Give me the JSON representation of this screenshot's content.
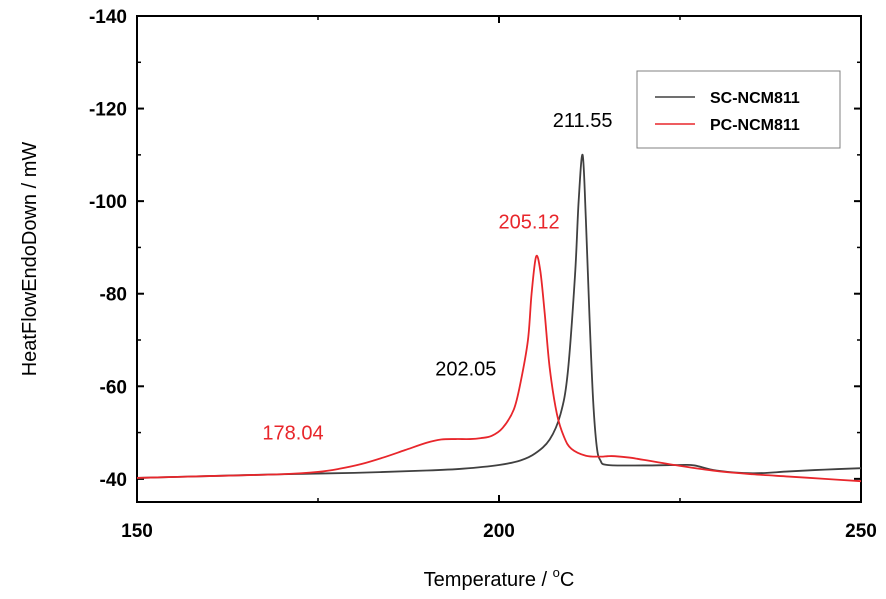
{
  "chart_data": {
    "type": "line",
    "title": "",
    "xlabel": "Temperature / °C",
    "xlabel_main": "Temperature / ",
    "xlabel_sup": "o",
    "xlabel_unit": "C",
    "ylabel": "HeatFlowEndoDown / mW",
    "xlim": [
      150,
      250
    ],
    "ylim": [
      -35,
      -140
    ],
    "xticks": [
      150,
      200,
      250
    ],
    "xtick_labels": [
      "150",
      "200",
      "250"
    ],
    "yticks": [
      -40,
      -60,
      -80,
      -100,
      -120,
      -140
    ],
    "ytick_labels": [
      "-40",
      "-60",
      "-80",
      "-100",
      "-120",
      "-140"
    ],
    "legend_position": "top-right",
    "series": [
      {
        "name": "SC-NCM811",
        "color": "#404040",
        "x": [
          150,
          160,
          170,
          180,
          190,
          195,
          200,
          203,
          205,
          207,
          208.5,
          209.5,
          210.5,
          211,
          211.55,
          212,
          212.5,
          213,
          213.5,
          214,
          215,
          220,
          225,
          227,
          230,
          235,
          240,
          245,
          250
        ],
        "y": [
          -40.2,
          -40.6,
          -41.0,
          -41.3,
          -41.8,
          -42.2,
          -43.0,
          -44.0,
          -45.5,
          -48.5,
          -54,
          -63,
          -84,
          -100,
          -110,
          -96,
          -75,
          -57,
          -47,
          -44,
          -43,
          -42.9,
          -43.0,
          -42.9,
          -41.8,
          -41.2,
          -41.6,
          -42.0,
          -42.3
        ]
      },
      {
        "name": "PC-NCM811",
        "color": "#e8262b",
        "x": [
          150,
          160,
          170,
          175,
          178.04,
          181,
          184,
          187,
          190,
          192,
          194,
          196,
          197.5,
          199,
          200.5,
          202.05,
          203,
          204,
          204.5,
          205.12,
          205.7,
          206.3,
          207,
          208,
          209,
          210,
          212,
          214,
          215,
          216,
          218,
          220,
          225,
          230,
          235,
          240,
          245,
          250
        ],
        "y": [
          -40.2,
          -40.6,
          -41.0,
          -41.5,
          -42.2,
          -43.2,
          -44.6,
          -46.2,
          -47.8,
          -48.5,
          -48.6,
          -48.6,
          -48.8,
          -49.3,
          -51,
          -55,
          -61,
          -70,
          -80,
          -88,
          -85,
          -76,
          -64,
          -54,
          -49,
          -46.5,
          -45.0,
          -44.8,
          -44.9,
          -44.9,
          -44.6,
          -44.1,
          -42.8,
          -41.7,
          -41.0,
          -40.5,
          -40.0,
          -39.5
        ]
      }
    ],
    "annotations": [
      {
        "text": "211.55",
        "x": 211.55,
        "y": -110,
        "color": "#000000"
      },
      {
        "text": "205.12",
        "x": 205.12,
        "y": -88,
        "color": "#e8262b"
      },
      {
        "text": "202.05",
        "x": 202.05,
        "y": -55,
        "color": "#000000"
      },
      {
        "text": "178.04",
        "x": 178.04,
        "y": -42.2,
        "color": "#e8262b"
      }
    ]
  }
}
